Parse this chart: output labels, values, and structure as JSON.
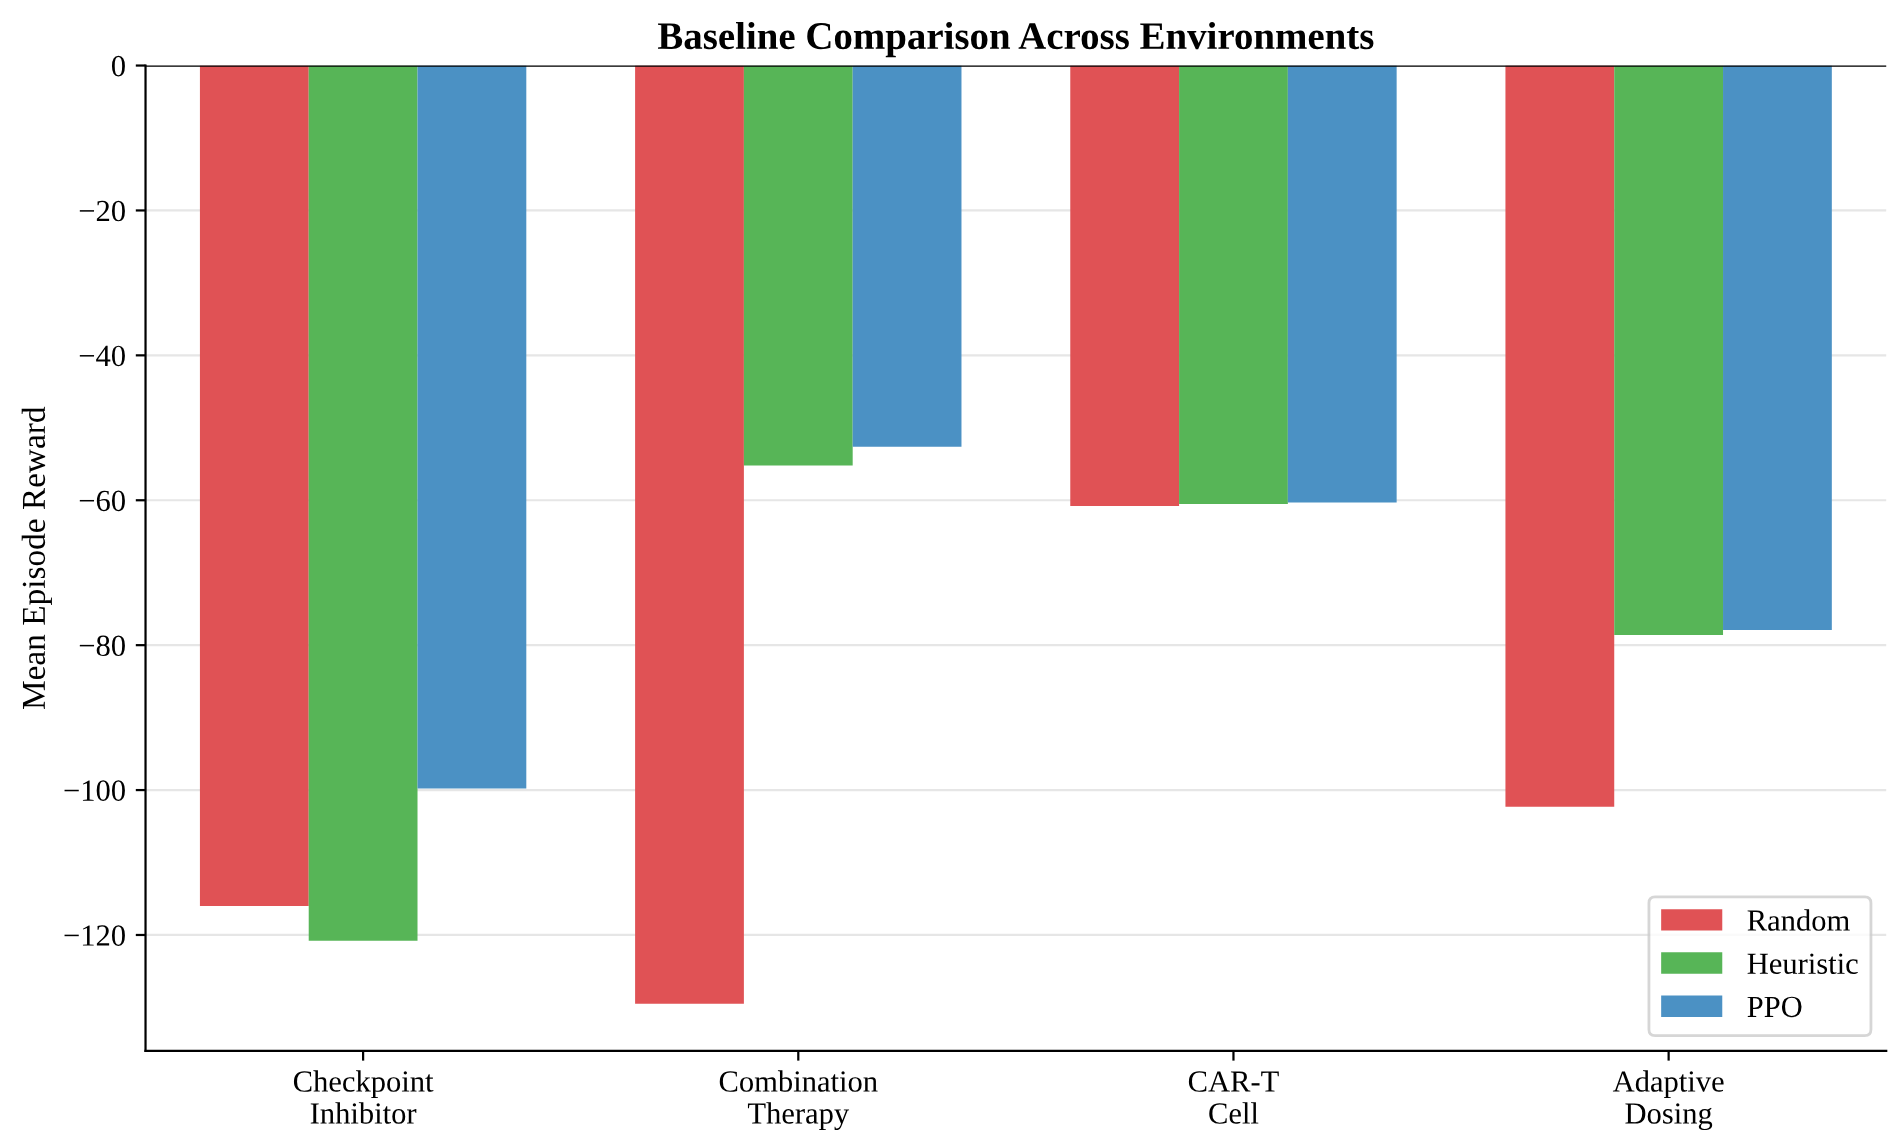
{
  "chart_data": {
    "type": "bar",
    "title": "Baseline Comparison Across Environments",
    "ylabel": "Mean Episode Reward",
    "categories": [
      "Checkpoint\nInhibitor",
      "Combination\nTherapy",
      "CAR-T\nCell",
      "Adaptive\nDosing"
    ],
    "series": [
      {
        "name": "Random",
        "color": "#e05255",
        "values": [
          -116,
          -129.5,
          -60.8,
          -102.3
        ]
      },
      {
        "name": "Heuristic",
        "color": "#57b557",
        "values": [
          -120.8,
          -55.2,
          -60.5,
          -78.6
        ]
      },
      {
        "name": "PPO",
        "color": "#4b91c4",
        "values": [
          -99.8,
          -52.6,
          -60.3,
          -77.9
        ]
      }
    ],
    "ylim": [
      -136,
      0
    ],
    "yticks": [
      {
        "value": -120,
        "label": "−120"
      },
      {
        "value": -100,
        "label": "−100"
      },
      {
        "value": -80,
        "label": "−80"
      },
      {
        "value": -60,
        "label": "−60"
      },
      {
        "value": -40,
        "label": "−40"
      },
      {
        "value": -20,
        "label": "−20"
      },
      0
    ],
    "grid": "y",
    "legend": "bottom right",
    "ref_lines": [
      {
        "axis": "y",
        "value": 0,
        "label": null,
        "color": "#000000"
      }
    ]
  }
}
